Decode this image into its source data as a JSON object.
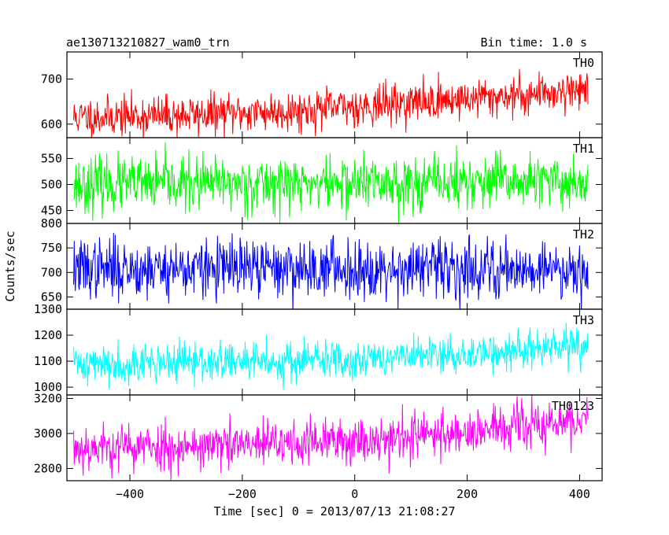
{
  "header": {
    "left_title": "ae130713210827_wam0_trn",
    "right_title": "Bin time: 1.0 s"
  },
  "chart_data": {
    "type": "line",
    "xlabel": "Time [sec] 0 = 2013/07/13 21:08:27",
    "ylabel": "Counts/sec",
    "xlim": [
      -512,
      440
    ],
    "x_range": [
      -500,
      415
    ],
    "x_ticks": [
      -400,
      -200,
      0,
      200,
      400
    ],
    "x_tick_labels": [
      "−400",
      "−200",
      "0",
      "200",
      "400"
    ],
    "bin_time_s": 1.0,
    "panels": [
      {
        "name": "TH0",
        "color": "#ff0000",
        "ylim": [
          570,
          760
        ],
        "yticks": [
          600,
          700
        ],
        "trend": [
          [
            -500,
            615
          ],
          [
            -300,
            620
          ],
          [
            -100,
            630
          ],
          [
            100,
            648
          ],
          [
            300,
            665
          ],
          [
            415,
            680
          ]
        ],
        "noise": 22,
        "seed": 11
      },
      {
        "name": "TH1",
        "color": "#00ff00",
        "ylim": [
          425,
          590
        ],
        "yticks": [
          450,
          500,
          550
        ],
        "trend": [
          [
            -500,
            500
          ],
          [
            415,
            505
          ]
        ],
        "noise": 26,
        "seed": 23
      },
      {
        "name": "TH2",
        "color": "#0000ff",
        "ylim": [
          625,
          800
        ],
        "yticks": [
          650,
          700,
          750,
          800
        ],
        "trend": [
          [
            -500,
            708
          ],
          [
            415,
            708
          ]
        ],
        "noise": 30,
        "seed": 37
      },
      {
        "name": "TH3",
        "color": "#00ffff",
        "ylim": [
          970,
          1300
        ],
        "yticks": [
          1000,
          1100,
          1200,
          1300
        ],
        "trend": [
          [
            -500,
            1090
          ],
          [
            -100,
            1100
          ],
          [
            200,
            1125
          ],
          [
            415,
            1160
          ]
        ],
        "noise": 38,
        "seed": 41
      },
      {
        "name": "TH0123",
        "color": "#ff00ff",
        "ylim": [
          2730,
          3220
        ],
        "yticks": [
          2800,
          3000,
          3200
        ],
        "trend": [
          [
            -500,
            2920
          ],
          [
            -200,
            2930
          ],
          [
            0,
            2960
          ],
          [
            200,
            3010
          ],
          [
            415,
            3070
          ]
        ],
        "noise": 68,
        "seed": 53
      }
    ]
  }
}
